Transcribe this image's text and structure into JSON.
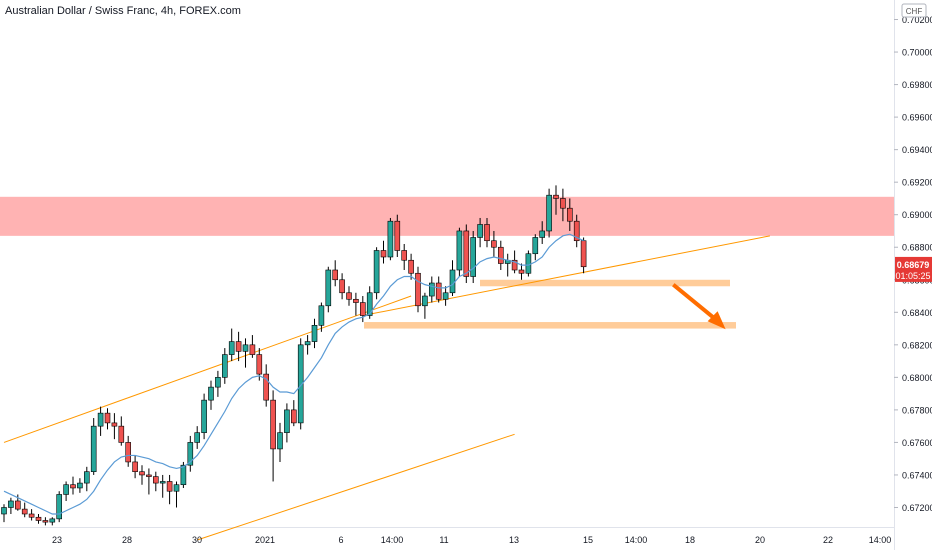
{
  "chart_data": {
    "type": "candlestick",
    "title": "Australian Dollar / Swiss Franc, 4h, FOREX.com",
    "currency": "CHF",
    "ylim": [
      0.6708,
      0.7032
    ],
    "y_ticks": [
      "0.70200",
      "0.70000",
      "0.69800",
      "0.69600",
      "0.69400",
      "0.69200",
      "0.69000",
      "0.68800",
      "0.68600",
      "0.68400",
      "0.68200",
      "0.68000",
      "0.67800",
      "0.67600",
      "0.67400",
      "0.67200"
    ],
    "x_ticks": [
      "23",
      "28",
      "30",
      "2021",
      "6",
      "14:00",
      "11",
      "13",
      "15",
      "14:00",
      "18",
      "20",
      "22",
      "14:00"
    ],
    "price_label": {
      "value": "0.68679",
      "countdown": "01:05:25",
      "price": 0.68679
    },
    "colors": {
      "up": "#26a69a",
      "down": "#ef5350",
      "ma": "#5b9bd5",
      "channel": "#ff9800",
      "resistance_zone": "#ffb3b3",
      "support_zone": "#ffcc99",
      "arrow": "#ff6d00",
      "price_label_bg": "#e53935"
    },
    "series": [
      {
        "type": "candles",
        "unit": "open/high/low/close",
        "values": [
          [
            0.6716,
            0.6722,
            0.6711,
            0.672
          ],
          [
            0.672,
            0.6726,
            0.6716,
            0.6724
          ],
          [
            0.6724,
            0.6728,
            0.6718,
            0.6719
          ],
          [
            0.6719,
            0.6723,
            0.6714,
            0.6716
          ],
          [
            0.6716,
            0.6719,
            0.6712,
            0.6714
          ],
          [
            0.6714,
            0.6716,
            0.671,
            0.6712
          ],
          [
            0.6712,
            0.6714,
            0.6709,
            0.6711
          ],
          [
            0.6711,
            0.6714,
            0.6709,
            0.6713
          ],
          [
            0.6713,
            0.673,
            0.6711,
            0.6728
          ],
          [
            0.6728,
            0.6736,
            0.6724,
            0.6734
          ],
          [
            0.6734,
            0.6739,
            0.6728,
            0.6732
          ],
          [
            0.6732,
            0.6738,
            0.6729,
            0.6735
          ],
          [
            0.6735,
            0.6745,
            0.673,
            0.6742
          ],
          [
            0.6742,
            0.6775,
            0.674,
            0.677
          ],
          [
            0.677,
            0.6782,
            0.6764,
            0.6778
          ],
          [
            0.6778,
            0.6781,
            0.6768,
            0.6772
          ],
          [
            0.6772,
            0.6778,
            0.6762,
            0.677
          ],
          [
            0.677,
            0.6776,
            0.6758,
            0.676
          ],
          [
            0.676,
            0.6764,
            0.6745,
            0.6748
          ],
          [
            0.6748,
            0.6752,
            0.6738,
            0.6742
          ],
          [
            0.6742,
            0.6746,
            0.6734,
            0.674
          ],
          [
            0.674,
            0.6744,
            0.6728,
            0.6739
          ],
          [
            0.6739,
            0.6742,
            0.673,
            0.6735
          ],
          [
            0.6735,
            0.674,
            0.6726,
            0.6736
          ],
          [
            0.6736,
            0.674,
            0.6722,
            0.673
          ],
          [
            0.673,
            0.6736,
            0.672,
            0.6734
          ],
          [
            0.6734,
            0.6748,
            0.6732,
            0.6746
          ],
          [
            0.6746,
            0.6764,
            0.6742,
            0.676
          ],
          [
            0.676,
            0.677,
            0.6756,
            0.6766
          ],
          [
            0.6766,
            0.679,
            0.6762,
            0.6786
          ],
          [
            0.6786,
            0.6798,
            0.678,
            0.6794
          ],
          [
            0.6794,
            0.6804,
            0.6788,
            0.68
          ],
          [
            0.68,
            0.6818,
            0.6796,
            0.6814
          ],
          [
            0.6814,
            0.683,
            0.681,
            0.6822
          ],
          [
            0.6822,
            0.6828,
            0.681,
            0.6816
          ],
          [
            0.6816,
            0.6824,
            0.6806,
            0.682
          ],
          [
            0.682,
            0.6826,
            0.6812,
            0.6814
          ],
          [
            0.6814,
            0.6818,
            0.6798,
            0.6802
          ],
          [
            0.6802,
            0.6808,
            0.6782,
            0.6786
          ],
          [
            0.6786,
            0.6792,
            0.6736,
            0.6756
          ],
          [
            0.6756,
            0.6772,
            0.6748,
            0.6766
          ],
          [
            0.6766,
            0.6784,
            0.676,
            0.678
          ],
          [
            0.678,
            0.6786,
            0.677,
            0.6772
          ],
          [
            0.6772,
            0.6824,
            0.6768,
            0.682
          ],
          [
            0.682,
            0.6826,
            0.6814,
            0.6822
          ],
          [
            0.6822,
            0.6836,
            0.6818,
            0.6832
          ],
          [
            0.6832,
            0.6846,
            0.6828,
            0.6844
          ],
          [
            0.6844,
            0.6868,
            0.684,
            0.6866
          ],
          [
            0.6866,
            0.6872,
            0.6856,
            0.686
          ],
          [
            0.686,
            0.6864,
            0.6848,
            0.6852
          ],
          [
            0.6852,
            0.6856,
            0.6844,
            0.6848
          ],
          [
            0.6848,
            0.6852,
            0.6838,
            0.6846
          ],
          [
            0.6846,
            0.685,
            0.6834,
            0.6838
          ],
          [
            0.6838,
            0.6856,
            0.6836,
            0.6852
          ],
          [
            0.6852,
            0.688,
            0.6848,
            0.6878
          ],
          [
            0.6878,
            0.6884,
            0.687,
            0.6874
          ],
          [
            0.6874,
            0.6898,
            0.6872,
            0.6896
          ],
          [
            0.6896,
            0.69,
            0.6874,
            0.6878
          ],
          [
            0.6878,
            0.6882,
            0.6866,
            0.6872
          ],
          [
            0.6872,
            0.6876,
            0.686,
            0.6864
          ],
          [
            0.6864,
            0.6868,
            0.684,
            0.6844
          ],
          [
            0.6844,
            0.6852,
            0.6836,
            0.685
          ],
          [
            0.685,
            0.6862,
            0.6846,
            0.6858
          ],
          [
            0.6858,
            0.6862,
            0.6846,
            0.6848
          ],
          [
            0.6848,
            0.6856,
            0.6844,
            0.6852
          ],
          [
            0.6852,
            0.6872,
            0.685,
            0.6866
          ],
          [
            0.6866,
            0.6892,
            0.6862,
            0.689
          ],
          [
            0.689,
            0.6894,
            0.6858,
            0.6862
          ],
          [
            0.6862,
            0.689,
            0.6858,
            0.6886
          ],
          [
            0.6886,
            0.6898,
            0.688,
            0.6894
          ],
          [
            0.6894,
            0.6898,
            0.688,
            0.6884
          ],
          [
            0.6884,
            0.689,
            0.6874,
            0.688
          ],
          [
            0.688,
            0.6884,
            0.6866,
            0.687
          ],
          [
            0.687,
            0.6876,
            0.6862,
            0.6872
          ],
          [
            0.6872,
            0.6878,
            0.6864,
            0.6866
          ],
          [
            0.6866,
            0.687,
            0.686,
            0.6864
          ],
          [
            0.6864,
            0.6878,
            0.6862,
            0.6876
          ],
          [
            0.6876,
            0.6888,
            0.6872,
            0.6886
          ],
          [
            0.6886,
            0.6896,
            0.6882,
            0.689
          ],
          [
            0.689,
            0.6916,
            0.6886,
            0.6912
          ],
          [
            0.6912,
            0.6918,
            0.69,
            0.691
          ],
          [
            0.691,
            0.6916,
            0.6896,
            0.6904
          ],
          [
            0.6904,
            0.691,
            0.689,
            0.6896
          ],
          [
            0.6896,
            0.69,
            0.688,
            0.6884
          ],
          [
            0.6884,
            0.6886,
            0.6864,
            0.6868
          ]
        ]
      },
      {
        "type": "line",
        "role": "moving-average",
        "values": [
          0.673,
          0.6728,
          0.6726,
          0.6724,
          0.6722,
          0.672,
          0.6718,
          0.6716,
          0.6716,
          0.6718,
          0.672,
          0.6722,
          0.6725,
          0.673,
          0.6737,
          0.6743,
          0.6748,
          0.6751,
          0.6752,
          0.6752,
          0.6751,
          0.675,
          0.6748,
          0.6747,
          0.6745,
          0.6744,
          0.6745,
          0.6748,
          0.6752,
          0.6758,
          0.6765,
          0.6772,
          0.6779,
          0.6787,
          0.6793,
          0.6797,
          0.68,
          0.6801,
          0.6799,
          0.6794,
          0.6791,
          0.6791,
          0.679,
          0.6795,
          0.68,
          0.6806,
          0.6812,
          0.682,
          0.6827,
          0.6831,
          0.6834,
          0.6836,
          0.6837,
          0.6839,
          0.6845,
          0.685,
          0.6856,
          0.686,
          0.6862,
          0.6862,
          0.6859,
          0.6857,
          0.6856,
          0.6855,
          0.6855,
          0.6857,
          0.6862,
          0.6864,
          0.6867,
          0.6871,
          0.6873,
          0.6874,
          0.6873,
          0.6872,
          0.6871,
          0.6869,
          0.6869,
          0.6871,
          0.6874,
          0.688,
          0.6884,
          0.6887,
          0.6888,
          0.6886,
          0.6884
        ]
      }
    ],
    "drawings": {
      "resistance_zone": [
        0.6887,
        0.6911
      ],
      "support_zones": [
        {
          "low": 0.6856,
          "high": 0.686
        },
        {
          "low": 0.683,
          "high": 0.6834
        }
      ],
      "channel_upper": {
        "from": [
          0,
          0.676
        ],
        "to": [
          59,
          0.685
        ]
      },
      "channel_lower": {
        "from": [
          28,
          0.67
        ],
        "to": [
          74,
          0.6765
        ]
      },
      "trendline": {
        "from": [
          52,
          0.6838
        ],
        "to": [
          111,
          0.6887
        ]
      },
      "arrow": {
        "from": [
          97,
          0.6857
        ],
        "to": [
          104,
          0.6832
        ]
      }
    }
  }
}
